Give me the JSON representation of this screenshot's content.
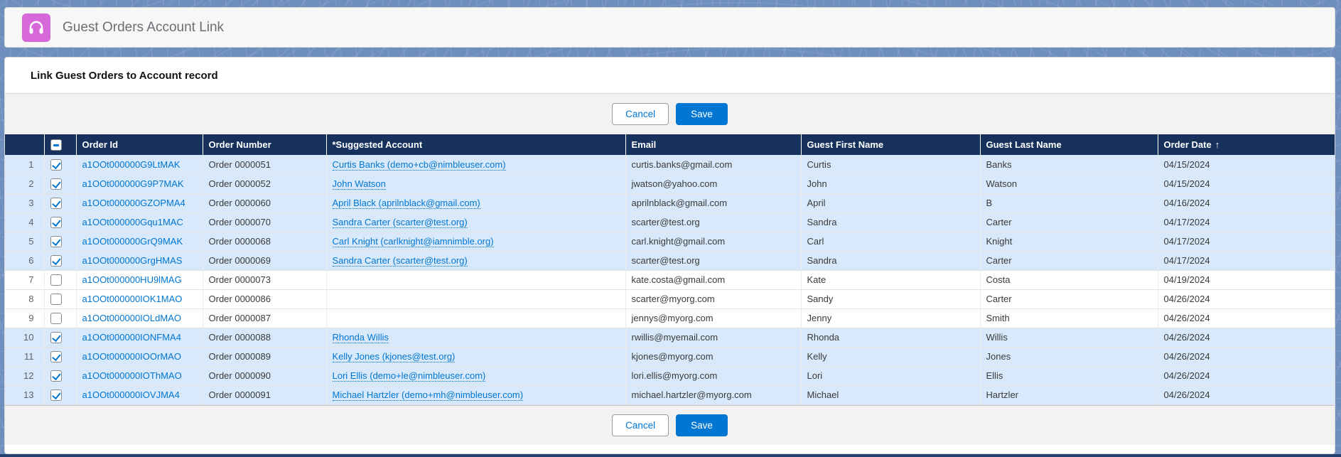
{
  "colors": {
    "accent": "#0176d3",
    "navy": "#16325c",
    "selected_row": "#d8e9fc"
  },
  "app_header": {
    "title": "Guest Orders Account Link",
    "icon": "headset-icon"
  },
  "panel": {
    "title": "Link Guest Orders to Account record"
  },
  "actions": {
    "cancel": "Cancel",
    "save": "Save"
  },
  "table": {
    "select_all_state": "indeterminate",
    "headers": {
      "order_id": "Order Id",
      "order_number": "Order Number",
      "suggested_account": "*Suggested Account",
      "email": "Email",
      "first_name": "Guest First Name",
      "last_name": "Guest Last Name",
      "order_date": "Order Date",
      "sort_arrow": "↑"
    },
    "rows": [
      {
        "num": 1,
        "checked": true,
        "order_id": "a1OOt000000G9LtMAK",
        "order_number": "Order 0000051",
        "suggested_account": "Curtis Banks (demo+cb@nimbleuser.com)",
        "email": "curtis.banks@gmail.com",
        "first_name": "Curtis",
        "last_name": "Banks",
        "order_date": "04/15/2024"
      },
      {
        "num": 2,
        "checked": true,
        "order_id": "a1OOt000000G9P7MAK",
        "order_number": "Order 0000052",
        "suggested_account": "John Watson",
        "email": "jwatson@yahoo.com",
        "first_name": "John",
        "last_name": "Watson",
        "order_date": "04/15/2024"
      },
      {
        "num": 3,
        "checked": true,
        "order_id": "a1OOt000000GZOPMA4",
        "order_number": "Order 0000060",
        "suggested_account": "April Black (aprilnblack@gmail.com)",
        "email": "aprilnblack@gmail.com",
        "first_name": "April",
        "last_name": "B",
        "order_date": "04/16/2024"
      },
      {
        "num": 4,
        "checked": true,
        "order_id": "a1OOt000000Gqu1MAC",
        "order_number": "Order 0000070",
        "suggested_account": "Sandra Carter (scarter@test.org)",
        "email": "scarter@test.org",
        "first_name": "Sandra",
        "last_name": "Carter",
        "order_date": "04/17/2024"
      },
      {
        "num": 5,
        "checked": true,
        "order_id": "a1OOt000000GrQ9MAK",
        "order_number": "Order 0000068",
        "suggested_account": "Carl Knight (carlknight@iamnimble.org)",
        "email": "carl.knight@gmail.com",
        "first_name": "Carl",
        "last_name": "Knight",
        "order_date": "04/17/2024"
      },
      {
        "num": 6,
        "checked": true,
        "order_id": "a1OOt000000GrgHMAS",
        "order_number": "Order 0000069",
        "suggested_account": "Sandra Carter (scarter@test.org)",
        "email": "scarter@test.org",
        "first_name": "Sandra",
        "last_name": "Carter",
        "order_date": "04/17/2024"
      },
      {
        "num": 7,
        "checked": false,
        "order_id": "a1OOt000000HU9lMAG",
        "order_number": "Order 0000073",
        "suggested_account": "",
        "email": "kate.costa@gmail.com",
        "first_name": "Kate",
        "last_name": "Costa",
        "order_date": "04/19/2024"
      },
      {
        "num": 8,
        "checked": false,
        "order_id": "a1OOt000000IOK1MAO",
        "order_number": "Order 0000086",
        "suggested_account": "",
        "email": "scarter@myorg.com",
        "first_name": "Sandy",
        "last_name": "Carter",
        "order_date": "04/26/2024"
      },
      {
        "num": 9,
        "checked": false,
        "order_id": "a1OOt000000IOLdMAO",
        "order_number": "Order 0000087",
        "suggested_account": "",
        "email": "jennys@myorg.com",
        "first_name": "Jenny",
        "last_name": "Smith",
        "order_date": "04/26/2024"
      },
      {
        "num": 10,
        "checked": true,
        "order_id": "a1OOt000000IONFMA4",
        "order_number": "Order 0000088",
        "suggested_account": "Rhonda Willis",
        "email": "rwillis@myemail.com",
        "first_name": "Rhonda",
        "last_name": "Willis",
        "order_date": "04/26/2024"
      },
      {
        "num": 11,
        "checked": true,
        "order_id": "a1OOt000000IOOrMAO",
        "order_number": "Order 0000089",
        "suggested_account": "Kelly Jones (kjones@test.org)",
        "email": "kjones@myorg.com",
        "first_name": "Kelly",
        "last_name": "Jones",
        "order_date": "04/26/2024"
      },
      {
        "num": 12,
        "checked": true,
        "order_id": "a1OOt000000IOThMAO",
        "order_number": "Order 0000090",
        "suggested_account": "Lori Ellis (demo+le@nimbleuser.com)",
        "email": "lori.ellis@myorg.com",
        "first_name": "Lori",
        "last_name": "Ellis",
        "order_date": "04/26/2024"
      },
      {
        "num": 13,
        "checked": true,
        "order_id": "a1OOt000000IOVJMA4",
        "order_number": "Order 0000091",
        "suggested_account": "Michael Hartzler (demo+mh@nimbleuser.com)",
        "email": "michael.hartzler@myorg.com",
        "first_name": "Michael",
        "last_name": "Hartzler",
        "order_date": "04/26/2024"
      }
    ]
  }
}
